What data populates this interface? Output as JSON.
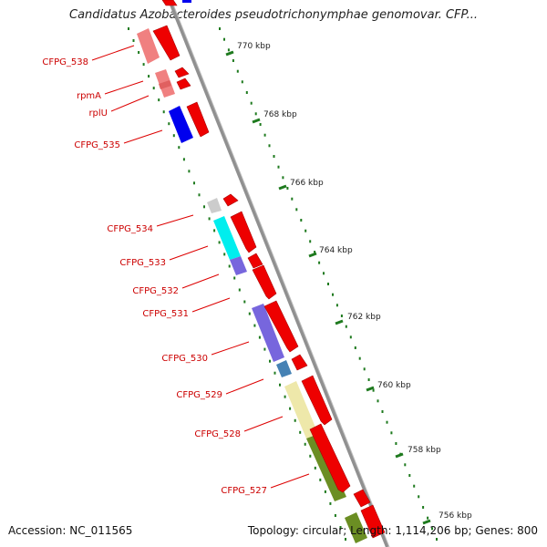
{
  "title": "Candidatus Azobacteroides pseudotrichonymphae genomovar. CFP...",
  "footer": {
    "accession": "Accession: NC_011565",
    "topology": "Topology: circular",
    "length": "Length: 1,114,206 bp",
    "genes": "Genes: 800"
  },
  "colors": {
    "backbone": "#909090",
    "tick": "#1e7a1e",
    "forward_gene": "#ee0000",
    "label": "#cc0000"
  },
  "ticks": [
    {
      "label": "770 kbp"
    },
    {
      "label": "768 kbp"
    },
    {
      "label": "766 kbp"
    },
    {
      "label": "764 kbp"
    },
    {
      "label": "762 kbp"
    },
    {
      "label": "760 kbp"
    },
    {
      "label": "758 kbp"
    },
    {
      "label": "756 kbp"
    }
  ],
  "gene_labels": [
    {
      "text": "CFPG_538"
    },
    {
      "text": "rpmA"
    },
    {
      "text": "rplU"
    },
    {
      "text": "CFPG_535"
    },
    {
      "text": "CFPG_534"
    },
    {
      "text": "CFPG_533"
    },
    {
      "text": "CFPG_532"
    },
    {
      "text": "CFPG_531"
    },
    {
      "text": "CFPG_530"
    },
    {
      "text": "CFPG_529"
    },
    {
      "text": "CFPG_528"
    },
    {
      "text": "CFPG_527"
    }
  ],
  "cog_colors": [
    "#f08080",
    "#f08080",
    "#f08080",
    "#0000ee",
    "#cccccc",
    "#00eeee",
    "#7766dd",
    "#7766dd",
    "#7766dd",
    "#4682b4",
    "#eee8aa",
    "#6b8e23",
    "#6b8e23"
  ]
}
